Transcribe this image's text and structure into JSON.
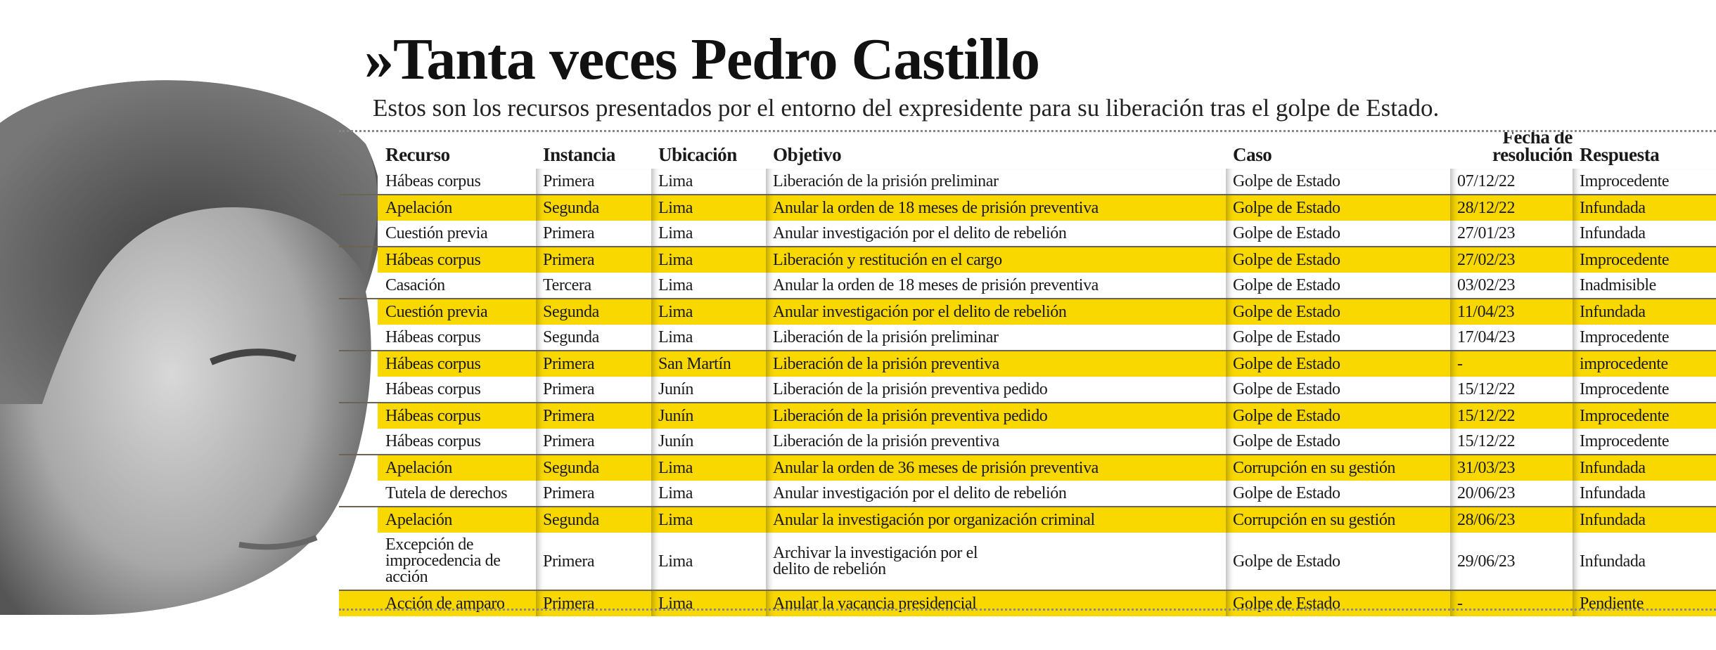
{
  "title": "»Tanta veces Pedro Castillo",
  "subtitle": "Estos son los recursos presentados por el entorno del expresidente para su liberación tras el golpe de Estado.",
  "colors": {
    "highlight": "#f9d800",
    "text": "#1a1a1a"
  },
  "table": {
    "headers": [
      "Recurso",
      "Instancia",
      "Ubicación",
      "Objetivo",
      "Caso",
      "Fecha de resolución",
      "Respuesta"
    ],
    "fecha_header_lines": [
      "Fecha de",
      "resolución"
    ],
    "rows": [
      [
        "Hábeas corpus",
        "Primera",
        "Lima",
        "Liberación de la prisión preliminar",
        "Golpe de Estado",
        "07/12/22",
        "Improcedente"
      ],
      [
        "Apelación",
        "Segunda",
        "Lima",
        "Anular la orden de 18 meses de prisión preventiva",
        "Golpe de Estado",
        "28/12/22",
        "Infundada"
      ],
      [
        "Cuestión previa",
        "Primera",
        "Lima",
        "Anular investigación por el delito de rebelión",
        "Golpe de Estado",
        "27/01/23",
        "Infundada"
      ],
      [
        "Hábeas corpus",
        "Primera",
        "Lima",
        "Liberación y restitución en el cargo",
        "Golpe de Estado",
        "27/02/23",
        "Improcedente"
      ],
      [
        "Casación",
        "Tercera",
        "Lima",
        "Anular la orden de 18 meses de prisión preventiva",
        "Golpe de Estado",
        "03/02/23",
        "Inadmisible"
      ],
      [
        "Cuestión previa",
        "Segunda",
        "Lima",
        "Anular investigación por el delito de rebelión",
        "Golpe de Estado",
        "11/04/23",
        "Infundada"
      ],
      [
        "Hábeas corpus",
        "Segunda",
        "Lima",
        "Liberación de la prisión preliminar",
        "Golpe de Estado",
        "17/04/23",
        "Improcedente"
      ],
      [
        "Hábeas corpus",
        "Primera",
        "San Martín",
        "Liberación de la prisión preventiva",
        "Golpe de Estado",
        "-",
        "improcedente"
      ],
      [
        "Hábeas corpus",
        "Primera",
        "Junín",
        "Liberación de la prisión preventiva pedido",
        "Golpe de Estado",
        "15/12/22",
        "Improcedente"
      ],
      [
        "Hábeas corpus",
        "Primera",
        "Junín",
        "Liberación de la prisión preventiva pedido",
        "Golpe de Estado",
        "15/12/22",
        "Improcedente"
      ],
      [
        "Hábeas corpus",
        "Primera",
        "Junín",
        "Liberación de la prisión preventiva",
        "Golpe de Estado",
        "15/12/22",
        "Improcedente"
      ],
      [
        "Apelación",
        "Segunda",
        "Lima",
        "Anular la orden de 36 meses de prisión preventiva",
        "Corrupción en su gestión",
        "31/03/23",
        "Infundada"
      ],
      [
        "Tutela de derechos",
        "Primera",
        "Lima",
        "Anular investigación por el delito de rebelión",
        "Golpe de Estado",
        "20/06/23",
        "Infundada"
      ],
      [
        "Apelación",
        "Segunda",
        "Lima",
        "Anular la investigación por organización criminal",
        "Corrupción en su gestión",
        "28/06/23",
        "Infundada"
      ],
      [
        "Excepción de improcedencia de acción",
        "Primera",
        "Lima",
        "Archivar la investigación por el delito de rebelión",
        "Golpe de Estado",
        "29/06/23",
        "Infundada"
      ],
      [
        "Acción de amparo",
        "Primera",
        "Lima",
        "Anular la vacancia presidencial",
        "Golpe de Estado",
        "-",
        "Pendiente"
      ]
    ]
  }
}
